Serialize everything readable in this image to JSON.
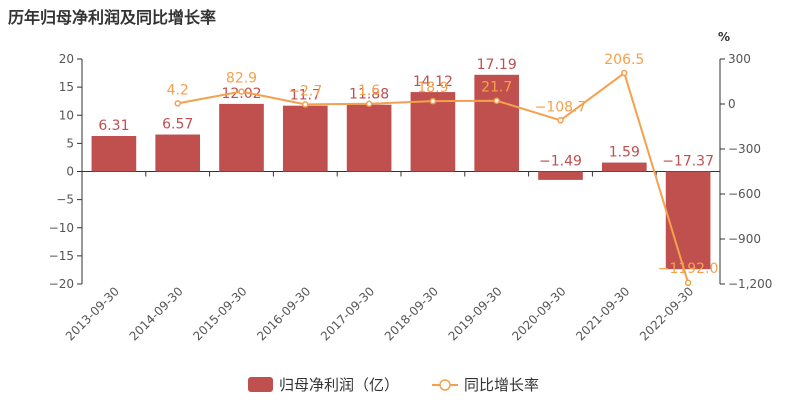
{
  "page": {
    "title": "历年归母净利润及同比增长率"
  },
  "chart_data": {
    "type": "bar",
    "categories": [
      "2013-09-30",
      "2014-09-30",
      "2015-09-30",
      "2016-09-30",
      "2017-09-30",
      "2018-09-30",
      "2019-09-30",
      "2020-09-30",
      "2021-09-30",
      "2022-09-30"
    ],
    "series": [
      {
        "name": "归母净利润（亿）",
        "type": "bar",
        "axis": "left",
        "color": "#c0504d",
        "values": [
          6.31,
          6.57,
          12.02,
          11.7,
          11.88,
          14.12,
          17.19,
          -1.49,
          1.59,
          -17.37
        ],
        "labels": [
          "6.31",
          "6.57",
          "12.02",
          "11.7",
          "11.88",
          "14.12",
          "17.19",
          "−1.49",
          "1.59",
          "−17.37"
        ]
      },
      {
        "name": "同比增长率",
        "type": "line",
        "axis": "right",
        "color": "#f4a14e",
        "values": [
          null,
          4.2,
          82.9,
          -2.7,
          1.6,
          18.9,
          21.7,
          -108.7,
          206.5,
          -1192.0
        ],
        "labels": [
          "",
          "4.2",
          "82.9",
          "−2.7",
          "1.6",
          "18.9",
          "21.7",
          "−108.7",
          "206.5",
          "−1192.0"
        ]
      }
    ],
    "y_left": {
      "min": -20,
      "max": 20,
      "ticks": [
        20,
        15,
        10,
        5,
        0,
        -5,
        -10,
        -15,
        -20
      ],
      "tick_labels": [
        "20",
        "15",
        "10",
        "5",
        "0",
        "−5",
        "−10",
        "−15",
        "−20"
      ]
    },
    "y_right": {
      "min": -1200,
      "max": 300,
      "unit": "%",
      "ticks": [
        300,
        0,
        -300,
        -600,
        -900,
        -1200
      ],
      "tick_labels": [
        "300",
        "0",
        "−300",
        "−600",
        "−900",
        "−1,200"
      ]
    },
    "legend": {
      "position": "bottom"
    }
  }
}
